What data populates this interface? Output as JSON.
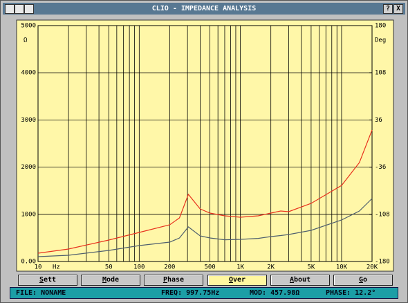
{
  "window": {
    "title": "CLIO - IMPEDANCE ANALYSIS",
    "controls": [
      "?",
      "X"
    ],
    "buttons": [
      "Sett",
      "Mode",
      "Phase",
      "Over",
      "About",
      "Go"
    ],
    "status": [
      "FILE: NONAME",
      "FREQ: 997.75Hz",
      "MOD: 457.98Ω",
      "PHASE: 12.2°"
    ]
  },
  "chart_data": {
    "type": "line",
    "log_x": true,
    "grid": true,
    "y_unit": "Ω",
    "y2_unit": "Deg",
    "x_unit": "Hz",
    "xlim": [
      10,
      20000
    ],
    "xticks": [
      10,
      50,
      100,
      200,
      500,
      {
        "value": 1000,
        "label": "1K"
      },
      {
        "value": 2000,
        "label": "2K"
      },
      {
        "value": 5000,
        "label": "5K"
      },
      {
        "value": 10000,
        "label": "10K"
      },
      {
        "value": 20000,
        "label": "20K"
      }
    ],
    "xgrid": [
      20,
      30,
      40,
      60,
      70,
      80,
      90,
      300,
      400,
      600,
      700,
      800,
      900,
      3000,
      4000,
      6000,
      7000,
      8000,
      9000
    ],
    "ylim": [
      0,
      5000
    ],
    "yticks": [
      {
        "value": 0,
        "label": "0.00"
      },
      1000,
      2000,
      3000,
      4000,
      5000
    ],
    "y2lim": [
      -180,
      180
    ],
    "y2ticks": [
      -180,
      -108,
      -36,
      36,
      108,
      180
    ],
    "x": [
      10,
      20,
      50,
      100,
      200,
      250,
      306,
      400,
      500,
      700,
      1000,
      1500,
      2000,
      2500,
      3000,
      5000,
      10000,
      15000,
      20000
    ],
    "series": [
      {
        "color": "#e8321e",
        "values": [
          176,
          264,
          455,
          616,
          777,
          924,
          1422,
          1114,
          1026,
          968,
          938,
          968,
          1026,
          1070,
          1056,
          1232,
          1613,
          2097,
          2786
        ]
      },
      {
        "color": "#4f5f6e",
        "values": [
          103,
          132,
          235,
          337,
          411,
          499,
          733,
          543,
          499,
          460,
          469,
          490,
          528,
          550,
          572,
          660,
          880,
          1070,
          1334
        ]
      }
    ]
  }
}
